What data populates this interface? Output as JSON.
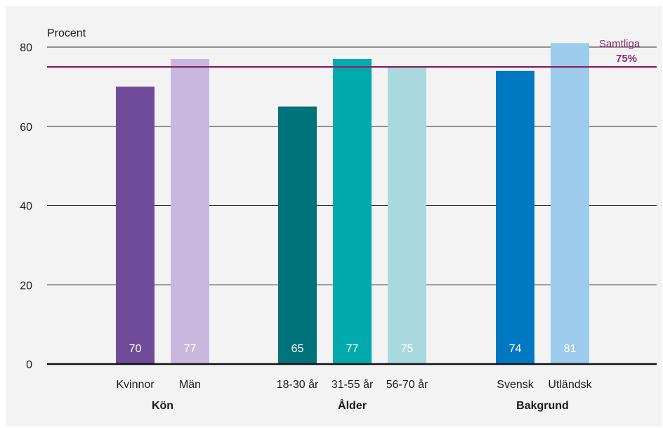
{
  "chart_data": {
    "type": "bar",
    "ylabel": "Procent",
    "ylim": [
      0,
      80
    ],
    "yticks": [
      0,
      20,
      40,
      60,
      80
    ],
    "grid": true,
    "reference_line": {
      "label": "Samtliga",
      "value_label": "75%",
      "value": 75,
      "color": "#8b2a6b"
    },
    "groups": [
      {
        "name": "Kön",
        "bars": [
          {
            "label": "Kvinnor",
            "value": 70,
            "color": "#704b9a"
          },
          {
            "label": "Män",
            "value": 77,
            "color": "#c8b8df"
          }
        ]
      },
      {
        "name": "Ålder",
        "bars": [
          {
            "label": "18-30 år",
            "value": 65,
            "color": "#00727a"
          },
          {
            "label": "31-55 år",
            "value": 77,
            "color": "#00aaad"
          },
          {
            "label": "56-70 år",
            "value": 75,
            "color": "#a9d9de"
          }
        ]
      },
      {
        "name": "Bakgrund",
        "bars": [
          {
            "label": "Svensk",
            "value": 74,
            "color": "#0079c2"
          },
          {
            "label": "Utländsk",
            "value": 81,
            "color": "#9ccbeb"
          }
        ]
      }
    ]
  }
}
